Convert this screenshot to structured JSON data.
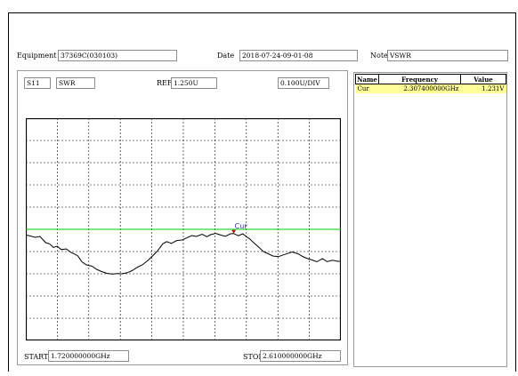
{
  "header": {
    "equipment_label": "Equipment",
    "equipment_value": "37369C(030103)",
    "date_label": "Date",
    "date_value": "2018-07-24-09-01-08",
    "note_label": "Note",
    "note_value": "VSWR"
  },
  "chart_header": {
    "param": "S11",
    "format": "SWR",
    "ref_label": "REF",
    "ref_value": "1.250U",
    "scale": "0.100U/DIV"
  },
  "chart_footer": {
    "start_label": "START",
    "start_value": "1.720000000GHz",
    "stop_label": "STOP",
    "stop_value": "2.610000000GHz"
  },
  "marker_table": {
    "columns": [
      "Name",
      "Frequency",
      "Value"
    ],
    "rows": [
      {
        "name": "Cur",
        "frequency": "2.307400000GHz",
        "value": "1.231V"
      }
    ]
  },
  "chart_data": {
    "type": "line",
    "title": "",
    "xlabel": "",
    "ylabel": "SWR",
    "x_unit": "GHz",
    "xlim": [
      1.72,
      2.61
    ],
    "ylim": [
      0.75,
      1.75
    ],
    "ref_line": {
      "value": 1.25,
      "color": "#00cc00"
    },
    "grid": true,
    "grid_divisions": {
      "x": 10,
      "y": 10
    },
    "marker": {
      "name": "Cur",
      "x": 2.3074,
      "y": 1.231,
      "color": "#cc0000"
    },
    "series": [
      {
        "color": "#000000",
        "x": [
          1.72,
          1.747,
          1.76,
          1.776,
          1.787,
          1.798,
          1.809,
          1.82,
          1.834,
          1.849,
          1.858,
          1.867,
          1.878,
          1.891,
          1.907,
          1.92,
          1.934,
          1.949,
          1.963,
          1.978,
          1.991,
          2.007,
          2.02,
          2.036,
          2.049,
          2.065,
          2.078,
          2.093,
          2.107,
          2.118,
          2.131,
          2.147,
          2.162,
          2.176,
          2.189,
          2.202,
          2.218,
          2.231,
          2.242,
          2.256,
          2.271,
          2.284,
          2.298,
          2.307,
          2.32,
          2.333,
          2.342,
          2.351,
          2.362,
          2.378,
          2.391,
          2.402,
          2.418,
          2.433,
          2.447,
          2.458,
          2.473,
          2.489,
          2.502,
          2.513,
          2.529,
          2.542,
          2.558,
          2.571,
          2.587,
          2.6,
          2.61
        ],
        "y": [
          1.225,
          1.214,
          1.218,
          1.19,
          1.185,
          1.169,
          1.174,
          1.159,
          1.162,
          1.145,
          1.139,
          1.13,
          1.105,
          1.09,
          1.084,
          1.07,
          1.06,
          1.052,
          1.049,
          1.051,
          1.05,
          1.055,
          1.064,
          1.08,
          1.09,
          1.11,
          1.13,
          1.155,
          1.185,
          1.195,
          1.187,
          1.2,
          1.202,
          1.213,
          1.222,
          1.218,
          1.228,
          1.217,
          1.226,
          1.232,
          1.224,
          1.219,
          1.23,
          1.231,
          1.221,
          1.23,
          1.218,
          1.209,
          1.192,
          1.17,
          1.15,
          1.142,
          1.13,
          1.127,
          1.135,
          1.141,
          1.148,
          1.14,
          1.128,
          1.12,
          1.112,
          1.104,
          1.118,
          1.105,
          1.111,
          1.106,
          1.107
        ]
      }
    ]
  }
}
